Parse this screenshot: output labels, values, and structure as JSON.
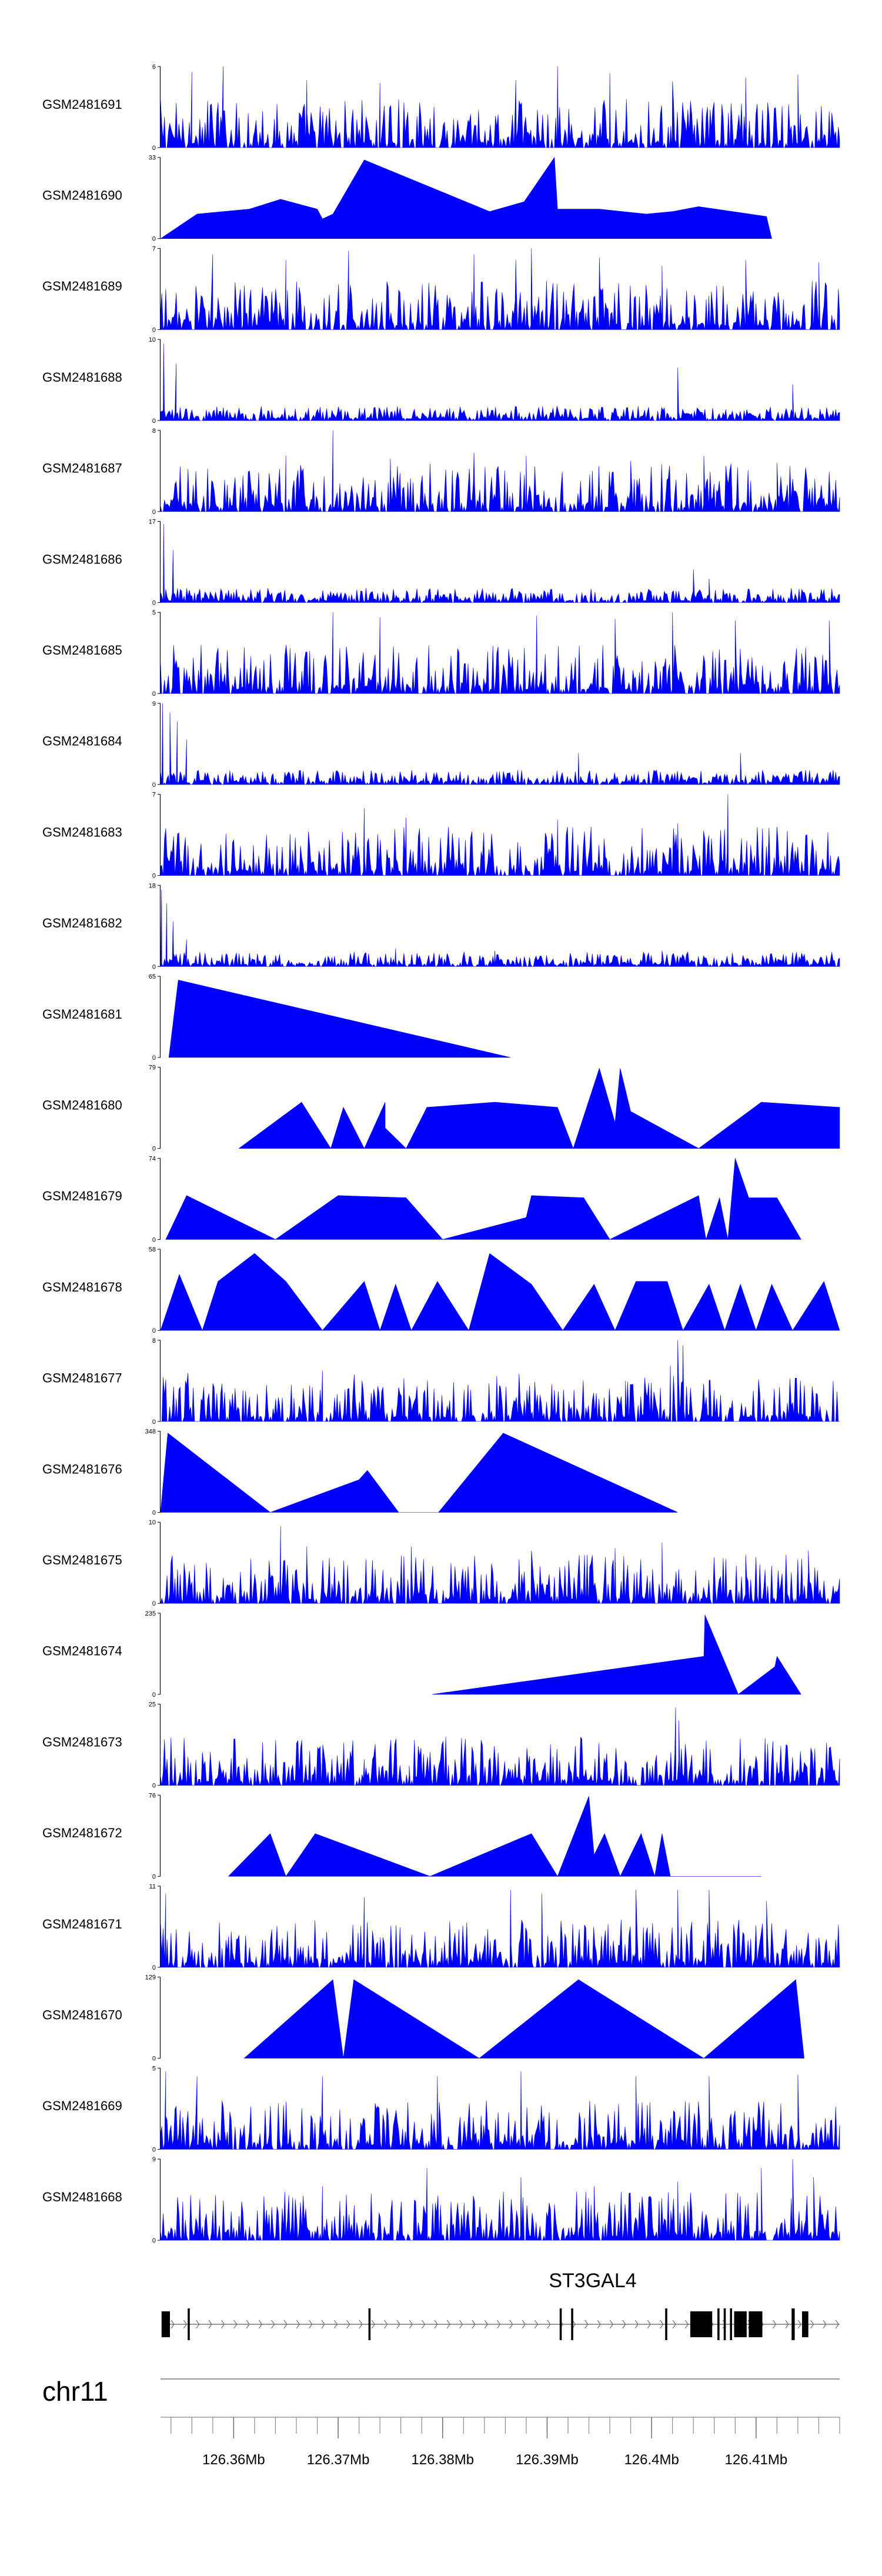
{
  "chart_data": {
    "type": "area",
    "title": "",
    "chromosome": "chr11",
    "x_range_mb": [
      126.353,
      126.418
    ],
    "x_tick_labels": [
      "126.36Mb",
      "126.37Mb",
      "126.38Mb",
      "126.39Mb",
      "126.4Mb",
      "126.41Mb"
    ],
    "x_tick_values_mb": [
      126.36,
      126.37,
      126.38,
      126.39,
      126.4,
      126.41
    ],
    "x_minor_tick_step_mb": 0.002,
    "fill_color": "#0000ff",
    "gene": {
      "name": "ST3GAL4",
      "exons": [
        [
          126.3531,
          126.3539
        ],
        [
          126.3556,
          126.3558
        ],
        [
          126.3729,
          126.3731
        ],
        [
          126.3912,
          126.3914
        ],
        [
          126.3923,
          126.3925
        ],
        [
          126.4013,
          126.4015
        ],
        [
          126.4037,
          126.4058
        ],
        [
          126.4063,
          126.4065
        ],
        [
          126.4069,
          126.4071
        ],
        [
          126.4075,
          126.4077
        ],
        [
          126.4079,
          126.4091
        ],
        [
          126.4093,
          126.4106
        ],
        [
          126.4134,
          126.4137
        ],
        [
          126.4144,
          126.415
        ]
      ]
    },
    "tracks": [
      {
        "name": "GSM2481691",
        "ymax": 6,
        "profile": "dense",
        "peaks": [
          [
            126.356,
            5.6
          ],
          [
            126.359,
            6.0
          ],
          [
            126.367,
            5.0
          ],
          [
            126.374,
            4.8
          ],
          [
            126.387,
            5.0
          ],
          [
            126.391,
            6.0
          ],
          [
            126.396,
            5.5
          ],
          [
            126.402,
            4.9
          ],
          [
            126.409,
            5.2
          ],
          [
            126.414,
            5.4
          ]
        ]
      },
      {
        "name": "GSM2481690",
        "ymax": 33,
        "profile": "sparse",
        "start": 126.353,
        "end": 126.4115,
        "peaks": [
          [
            126.3565,
            10
          ],
          [
            126.3615,
            12
          ],
          [
            126.3645,
            16
          ],
          [
            126.368,
            12
          ],
          [
            126.3695,
            10
          ],
          [
            126.3725,
            32
          ],
          [
            126.3845,
            11
          ],
          [
            126.3878,
            15
          ],
          [
            126.3907,
            33
          ],
          [
            126.395,
            12
          ],
          [
            126.3995,
            10
          ],
          [
            126.402,
            11
          ],
          [
            126.4045,
            13
          ],
          [
            126.411,
            9
          ]
        ],
        "shoulders": [
          [
            126.3685,
            8
          ],
          [
            126.391,
            12
          ]
        ]
      },
      {
        "name": "GSM2481689",
        "ymax": 7,
        "profile": "dense",
        "peaks": [
          [
            126.358,
            6.5
          ],
          [
            126.365,
            6.0
          ],
          [
            126.371,
            6.8
          ],
          [
            126.383,
            6.5
          ],
          [
            126.387,
            6.0
          ],
          [
            126.3885,
            7.0
          ],
          [
            126.395,
            6.2
          ],
          [
            126.401,
            5.5
          ],
          [
            126.409,
            6.0
          ],
          [
            126.416,
            5.8
          ]
        ]
      },
      {
        "name": "GSM2481688",
        "ymax": 10,
        "profile": "leftspike",
        "peaks": [
          [
            126.3533,
            9.5
          ],
          [
            126.3545,
            7.0
          ],
          [
            126.4025,
            6.5
          ],
          [
            126.4135,
            4.5
          ]
        ]
      },
      {
        "name": "GSM2481687",
        "ymax": 8,
        "profile": "dense",
        "peaks": [
          [
            126.3695,
            8.0
          ],
          [
            126.365,
            5.5
          ],
          [
            126.375,
            5.2
          ],
          [
            126.383,
            5.8
          ],
          [
            126.388,
            5.5
          ],
          [
            126.398,
            5.0
          ],
          [
            126.405,
            5.5
          ],
          [
            126.412,
            4.8
          ]
        ]
      },
      {
        "name": "GSM2481686",
        "ymax": 17,
        "profile": "leftspike",
        "peaks": [
          [
            126.3533,
            16.5
          ],
          [
            126.3542,
            11.0
          ],
          [
            126.404,
            7.0
          ],
          [
            126.4055,
            5.0
          ]
        ]
      },
      {
        "name": "GSM2481685",
        "ymax": 5,
        "profile": "dense",
        "peaks": [
          [
            126.3695,
            5.0
          ],
          [
            126.374,
            4.7
          ],
          [
            126.389,
            4.8
          ],
          [
            126.3965,
            4.5
          ],
          [
            126.3965,
            4.6
          ],
          [
            126.402,
            5.0
          ],
          [
            126.408,
            4.5
          ],
          [
            126.417,
            4.5
          ]
        ]
      },
      {
        "name": "GSM2481684",
        "ymax": 9,
        "profile": "leftspike",
        "peaks": [
          [
            126.3532,
            9.0
          ],
          [
            126.3539,
            8.0
          ],
          [
            126.3546,
            7.0
          ],
          [
            126.3555,
            5.0
          ],
          [
            126.393,
            3.5
          ],
          [
            126.4085,
            3.5
          ]
        ]
      },
      {
        "name": "GSM2481683",
        "ymax": 7,
        "profile": "dense",
        "peaks": [
          [
            126.3725,
            5.8
          ],
          [
            126.3765,
            5.0
          ],
          [
            126.391,
            4.8
          ],
          [
            126.4025,
            4.5
          ],
          [
            126.4073,
            7.0
          ],
          [
            126.412,
            4.2
          ]
        ]
      },
      {
        "name": "GSM2481682",
        "ymax": 18,
        "profile": "leftspike",
        "peaks": [
          [
            126.3531,
            17.0
          ],
          [
            126.3536,
            14.0
          ],
          [
            126.3542,
            10.0
          ],
          [
            126.3555,
            6.0
          ],
          [
            126.3755,
            4.0
          ],
          [
            126.385,
            3.5
          ],
          [
            126.401,
            3.5
          ]
        ]
      },
      {
        "name": "GSM2481681",
        "ymax": 65,
        "profile": "sparse",
        "start": 126.3538,
        "end": 126.3865,
        "peaks": [
          [
            126.3547,
            62
          ]
        ],
        "shoulders": []
      },
      {
        "name": "GSM2481680",
        "ymax": 79,
        "profile": "sparse",
        "start": 126.3605,
        "end": 126.418,
        "peaks": [
          [
            126.3665,
            45
          ],
          [
            126.3705,
            40
          ],
          [
            126.3745,
            45
          ],
          [
            126.3785,
            40
          ],
          [
            126.385,
            45
          ],
          [
            126.391,
            40
          ],
          [
            126.395,
            78
          ],
          [
            126.397,
            78
          ],
          [
            126.398,
            36
          ],
          [
            126.4105,
            45
          ],
          [
            126.418,
            40
          ]
        ],
        "shoulders": [
          [
            126.3693,
            0
          ],
          [
            126.3725,
            0
          ],
          [
            126.3745,
            20
          ],
          [
            126.3765,
            0
          ],
          [
            126.3925,
            0
          ],
          [
            126.3965,
            25
          ],
          [
            126.4045,
            0
          ]
        ]
      },
      {
        "name": "GSM2481679",
        "ymax": 74,
        "profile": "sparse",
        "start": 126.3535,
        "end": 126.4143,
        "peaks": [
          [
            126.3555,
            40
          ],
          [
            126.37,
            40
          ],
          [
            126.3765,
            38
          ],
          [
            126.3885,
            40
          ],
          [
            126.3935,
            38
          ],
          [
            126.4045,
            40
          ],
          [
            126.4065,
            38
          ],
          [
            126.408,
            74
          ],
          [
            126.4093,
            38
          ],
          [
            126.412,
            38
          ]
        ],
        "shoulders": [
          [
            126.364,
            0
          ],
          [
            126.38,
            0
          ],
          [
            126.388,
            20
          ],
          [
            126.396,
            0
          ],
          [
            126.4052,
            0
          ],
          [
            126.4073,
            0
          ]
        ]
      },
      {
        "name": "GSM2481678",
        "ymax": 58,
        "profile": "sparse",
        "start": 126.353,
        "end": 126.418,
        "peaks": [
          [
            126.3548,
            40
          ],
          [
            126.3585,
            35
          ],
          [
            126.362,
            55
          ],
          [
            126.365,
            35
          ],
          [
            126.3725,
            35
          ],
          [
            126.3755,
            33
          ],
          [
            126.3795,
            35
          ],
          [
            126.3845,
            55
          ],
          [
            126.3885,
            33
          ],
          [
            126.3945,
            33
          ],
          [
            126.3985,
            35
          ],
          [
            126.4015,
            35
          ],
          [
            126.4055,
            33
          ],
          [
            126.4085,
            33
          ],
          [
            126.4115,
            33
          ],
          [
            126.4165,
            35
          ]
        ],
        "shoulders": [
          [
            126.357,
            0
          ],
          [
            126.3685,
            0
          ],
          [
            126.374,
            0
          ],
          [
            126.377,
            0
          ],
          [
            126.3825,
            0
          ],
          [
            126.3915,
            0
          ],
          [
            126.3965,
            0
          ],
          [
            126.403,
            0
          ],
          [
            126.407,
            0
          ],
          [
            126.41,
            0
          ],
          [
            126.4135,
            0
          ]
        ]
      },
      {
        "name": "GSM2481677",
        "ymax": 8,
        "profile": "dense",
        "peaks": [
          [
            126.3685,
            5.0
          ],
          [
            126.3715,
            4.0
          ],
          [
            126.3855,
            3.5
          ],
          [
            126.3975,
            4.0
          ],
          [
            126.4018,
            5.5
          ],
          [
            126.4025,
            8.0
          ],
          [
            126.403,
            7.5
          ],
          [
            126.4055,
            4.0
          ]
        ]
      },
      {
        "name": "GSM2481676",
        "ymax": 348,
        "profile": "sparse",
        "start": 126.353,
        "end": 126.4025,
        "peaks": [
          [
            126.3537,
            340
          ],
          [
            126.3728,
            180
          ],
          [
            126.3858,
            340
          ]
        ],
        "shoulders": [
          [
            126.3635,
            0
          ],
          [
            126.372,
            140
          ],
          [
            126.3758,
            0
          ],
          [
            126.3796,
            0
          ]
        ]
      },
      {
        "name": "GSM2481675",
        "ymax": 10,
        "profile": "dense",
        "peaks": [
          [
            126.3645,
            9.5
          ],
          [
            126.367,
            7.0
          ],
          [
            126.377,
            7.0
          ],
          [
            126.3885,
            6.5
          ],
          [
            126.3965,
            6.8
          ],
          [
            126.401,
            7.5
          ],
          [
            126.409,
            6.0
          ],
          [
            126.415,
            6.5
          ]
        ]
      },
      {
        "name": "GSM2481674",
        "ymax": 235,
        "profile": "sparse",
        "start": 126.379,
        "end": 126.4143,
        "peaks": [
          [
            126.405,
            110
          ],
          [
            126.412,
            110
          ]
        ],
        "shoulders": [
          [
            126.4051,
            230
          ],
          [
            126.4083,
            0
          ],
          [
            126.4118,
            80
          ]
        ]
      },
      {
        "name": "GSM2481673",
        "ymax": 25,
        "profile": "dense",
        "peaks": [
          [
            126.4023,
            24.0
          ],
          [
            126.4026,
            20.0
          ],
          [
            126.3725,
            8.0
          ],
          [
            126.3768,
            6.0
          ],
          [
            126.3865,
            5.0
          ],
          [
            126.3995,
            6.5
          ],
          [
            126.4125,
            4.5
          ]
        ]
      },
      {
        "name": "GSM2481672",
        "ymax": 76,
        "profile": "sparse",
        "start": 126.3595,
        "end": 126.4105,
        "peaks": [
          [
            126.3635,
            40
          ],
          [
            126.3678,
            40
          ],
          [
            126.3885,
            40
          ],
          [
            126.394,
            75
          ],
          [
            126.3955,
            40
          ],
          [
            126.399,
            40
          ],
          [
            126.401,
            40
          ]
        ],
        "shoulders": [
          [
            126.365,
            0
          ],
          [
            126.3788,
            0
          ],
          [
            126.391,
            0
          ],
          [
            126.3945,
            20
          ],
          [
            126.397,
            0
          ],
          [
            126.4003,
            0
          ],
          [
            126.4018,
            0
          ]
        ]
      },
      {
        "name": "GSM2481671",
        "ymax": 11,
        "profile": "dense",
        "peaks": [
          [
            126.3535,
            10.0
          ],
          [
            126.3725,
            9.5
          ],
          [
            126.3865,
            10.5
          ],
          [
            126.3895,
            10.0
          ],
          [
            126.3985,
            10.5
          ],
          [
            126.4025,
            10.5
          ],
          [
            126.4055,
            10.5
          ],
          [
            126.411,
            9.0
          ]
        ]
      },
      {
        "name": "GSM2481670",
        "ymax": 129,
        "profile": "sparse",
        "start": 126.361,
        "end": 126.4146,
        "peaks": [
          [
            126.3695,
            125
          ],
          [
            126.3715,
            125
          ],
          [
            126.393,
            125
          ],
          [
            126.4138,
            125
          ]
        ],
        "shoulders": [
          [
            126.3705,
            0
          ],
          [
            126.3835,
            0
          ],
          [
            126.405,
            0
          ]
        ]
      },
      {
        "name": "GSM2481669",
        "ymax": 5,
        "profile": "dense",
        "peaks": [
          [
            126.3535,
            4.8
          ],
          [
            126.3565,
            4.5
          ],
          [
            126.3685,
            4.5
          ],
          [
            126.3795,
            4.5
          ],
          [
            126.3875,
            4.8
          ],
          [
            126.3985,
            4.5
          ],
          [
            126.4055,
            4.5
          ],
          [
            126.414,
            4.6
          ]
        ]
      },
      {
        "name": "GSM2481668",
        "ymax": 9,
        "profile": "dense",
        "peaks": [
          [
            126.3785,
            8.0
          ],
          [
            126.3685,
            6.0
          ],
          [
            126.3875,
            7.0
          ],
          [
            126.3945,
            6.0
          ],
          [
            126.4025,
            6.5
          ],
          [
            126.4105,
            8.0
          ],
          [
            126.4135,
            9.0
          ],
          [
            126.4155,
            7.0
          ]
        ]
      }
    ]
  }
}
